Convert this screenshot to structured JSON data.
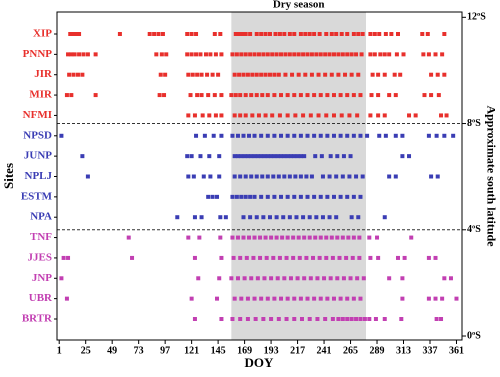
{
  "chart_data": {
    "type": "event-scatter",
    "x_label": "DOY",
    "y_label": "Sites",
    "y2_label": "Approximate south latitude",
    "shade": {
      "x": [
        157,
        279
      ],
      "label": "Dry season",
      "color": "#d9d9d9"
    },
    "xlim": [
      -1,
      366
    ],
    "xticks": [
      1,
      25,
      49,
      73,
      97,
      121,
      145,
      169,
      193,
      217,
      241,
      265,
      289,
      313,
      337,
      361
    ],
    "y2lim": [
      -0.15,
      12.2
    ],
    "y2ticks": [
      {
        "value": 0,
        "label": "0ºS"
      },
      {
        "value": 4,
        "label": "4ºS"
      },
      {
        "value": 8,
        "label": "8ºS"
      },
      {
        "value": 12,
        "label": "12ºS"
      }
    ],
    "hlines_y2": [
      4,
      8
    ],
    "sites": [
      {
        "name": "XIP",
        "color": "#e8302c",
        "doy": [
          11,
          13,
          16,
          19,
          56,
          83,
          87,
          91,
          95,
          117,
          121,
          125,
          142,
          147,
          161,
          164,
          167,
          170,
          174,
          180,
          184,
          188,
          192,
          197,
          201,
          205,
          210,
          214,
          220,
          224,
          228,
          232,
          237,
          243,
          248,
          252,
          257,
          262,
          268,
          272,
          276,
          283,
          287,
          291,
          297,
          302,
          308,
          330,
          335,
          350
        ]
      },
      {
        "name": "PNNP",
        "color": "#e8302c",
        "doy": [
          9,
          12,
          15,
          19,
          23,
          27,
          34,
          89,
          94,
          98,
          117,
          121,
          125,
          129,
          134,
          138,
          143,
          148,
          158,
          162,
          166,
          170,
          174,
          178,
          182,
          186,
          190,
          194,
          198,
          202,
          206,
          210,
          214,
          218,
          222,
          226,
          230,
          234,
          238,
          242,
          246,
          250,
          254,
          258,
          262,
          266,
          270,
          275,
          283,
          287,
          292,
          296,
          300,
          307,
          313,
          331,
          336,
          342,
          348
        ]
      },
      {
        "name": "JIR",
        "color": "#e8302c",
        "doy": [
          10,
          14,
          18,
          22,
          93,
          97,
          118,
          122,
          126,
          130,
          135,
          140,
          145,
          160,
          164,
          168,
          172,
          176,
          180,
          184,
          188,
          192,
          196,
          200,
          206,
          212,
          218,
          224,
          230,
          236,
          242,
          248,
          254,
          260,
          266,
          272,
          285,
          290,
          296,
          305,
          310,
          338,
          344,
          350
        ]
      },
      {
        "name": "MIR",
        "color": "#e8302c",
        "doy": [
          8,
          12,
          34,
          92,
          96,
          120,
          126,
          130,
          136,
          142,
          148,
          157,
          161,
          165,
          170,
          175,
          180,
          185,
          190,
          196,
          202,
          208,
          214,
          220,
          226,
          232,
          238,
          244,
          250,
          256,
          262,
          268,
          274,
          284,
          290,
          300,
          306,
          332,
          338,
          345
        ]
      },
      {
        "name": "NFMI",
        "color": "#e8302c",
        "doy": [
          118,
          124,
          131,
          137,
          143,
          148,
          160,
          165,
          170,
          176,
          182,
          188,
          194,
          201,
          208,
          215,
          222,
          229,
          236,
          243,
          250,
          257,
          264,
          271,
          283,
          290,
          296,
          318,
          324,
          347,
          352
        ]
      },
      {
        "name": "NPSD",
        "color": "#3a3db4",
        "doy": [
          3,
          125,
          133,
          141,
          148,
          158,
          163,
          168,
          173,
          178,
          184,
          190,
          196,
          202,
          208,
          214,
          220,
          226,
          232,
          238,
          244,
          250,
          256,
          262,
          268,
          274,
          280,
          291,
          297,
          306,
          312,
          336,
          343,
          350,
          358
        ]
      },
      {
        "name": "JUNP",
        "color": "#3a3db4",
        "doy": [
          22,
          117,
          121,
          129,
          137,
          146,
          160,
          163,
          166,
          169,
          172,
          175,
          178,
          181,
          184,
          187,
          190,
          193,
          196,
          199,
          202,
          205,
          208,
          211,
          214,
          217,
          220,
          223,
          233,
          239,
          247,
          253,
          259,
          265,
          312,
          318
        ]
      },
      {
        "name": "NPLJ",
        "color": "#3a3db4",
        "doy": [
          27,
          118,
          123,
          132,
          138,
          146,
          160,
          165,
          170,
          175,
          180,
          185,
          190,
          195,
          200,
          205,
          210,
          215,
          220,
          225,
          230,
          240,
          246,
          252,
          258,
          264,
          270,
          276,
          300,
          306,
          338,
          344
        ]
      },
      {
        "name": "ESTM",
        "color": "#3a3db4",
        "doy": [
          136,
          140,
          144,
          158,
          162,
          166,
          170,
          174,
          178,
          184,
          190,
          196,
          202,
          208,
          214,
          220,
          226,
          232,
          238,
          244,
          250,
          256,
          262,
          268,
          274
        ]
      },
      {
        "name": "NPA",
        "color": "#3a3db4",
        "doy": [
          108,
          124,
          130,
          147,
          152,
          168,
          174,
          180,
          186,
          192,
          198,
          204,
          210,
          216,
          222,
          228,
          234,
          240,
          246,
          252,
          266,
          272,
          296
        ]
      },
      {
        "name": "TNF",
        "color": "#c23fb2",
        "doy": [
          64,
          118,
          128,
          147,
          158,
          163,
          168,
          173,
          178,
          183,
          188,
          193,
          198,
          203,
          208,
          213,
          218,
          223,
          228,
          233,
          238,
          243,
          248,
          253,
          258,
          263,
          268,
          273,
          282,
          289,
          320
        ]
      },
      {
        "name": "JJES",
        "color": "#c23fb2",
        "doy": [
          5,
          9,
          67,
          124,
          148,
          159,
          165,
          171,
          177,
          183,
          189,
          195,
          201,
          207,
          213,
          219,
          225,
          231,
          237,
          243,
          249,
          255,
          261,
          267,
          273,
          283,
          290,
          308,
          314,
          336,
          342
        ]
      },
      {
        "name": "JNP",
        "color": "#c23fb2",
        "doy": [
          3,
          127,
          146,
          157,
          163,
          169,
          175,
          181,
          187,
          193,
          199,
          205,
          211,
          217,
          223,
          229,
          235,
          241,
          247,
          253,
          259,
          265,
          271,
          277,
          300,
          312,
          350,
          356
        ]
      },
      {
        "name": "UBR",
        "color": "#c23fb2",
        "doy": [
          8,
          121,
          144,
          160,
          166,
          172,
          178,
          184,
          190,
          196,
          202,
          208,
          214,
          220,
          226,
          232,
          238,
          244,
          250,
          256,
          262,
          268,
          274,
          312,
          336,
          342,
          348,
          361
        ]
      },
      {
        "name": "BRTR",
        "color": "#c23fb2",
        "doy": [
          124,
          148,
          158,
          165,
          172,
          179,
          186,
          193,
          200,
          207,
          214,
          221,
          228,
          235,
          242,
          249,
          254,
          258,
          262,
          266,
          270,
          274,
          278,
          282,
          288,
          296,
          311,
          343,
          347
        ]
      }
    ]
  }
}
